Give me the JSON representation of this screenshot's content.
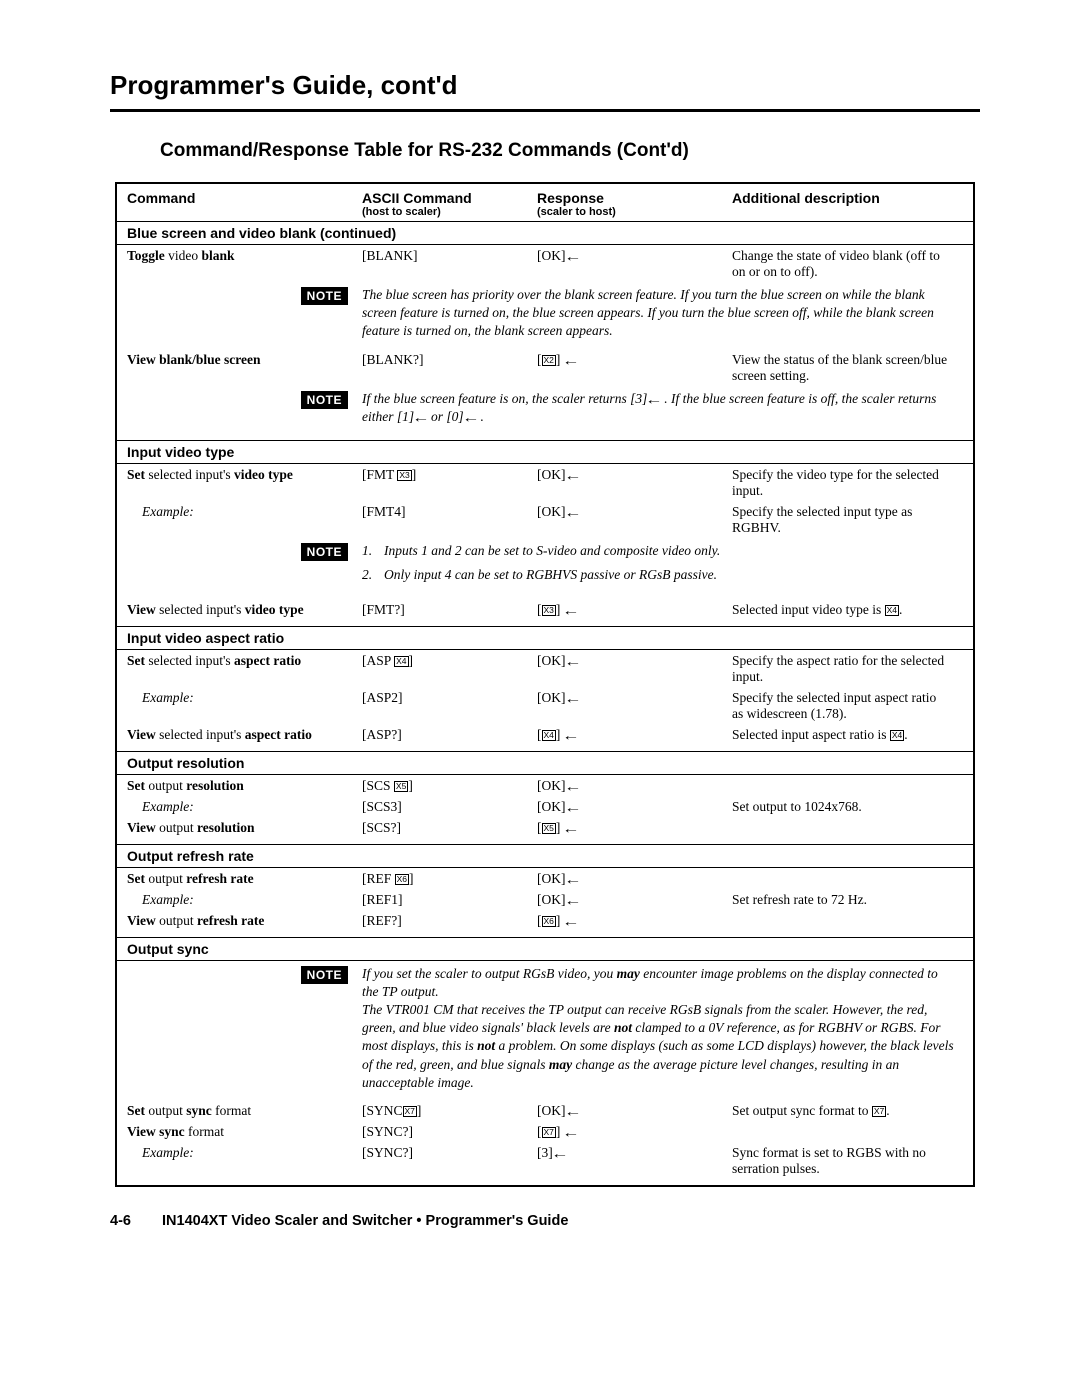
{
  "page_title": "Programmer's Guide, cont'd",
  "subtitle": "Command/Response Table for RS-232 Commands (Cont'd)",
  "columns": {
    "cmd": "Command",
    "ascii": "ASCII Command",
    "ascii_sub": "(host to scaler)",
    "resp": "Response",
    "resp_sub": "(scaler to host)",
    "desc": "Additional description"
  },
  "sections": [
    {
      "header": "Blue screen and video blank (continued)",
      "rows": [
        {
          "cmd_pre": "Toggle",
          "cmd_mid": " video ",
          "cmd_bold": "blank",
          "ascii": "[BLANK]",
          "resp": "[OK]←",
          "desc": "Change the state of video blank (off to on or on to off)."
        },
        {
          "note": "The blue screen has priority over the blank screen feature.  If you turn the blue screen on while the blank screen feature is turned on, the blue screen appears.  If you turn the blue screen off, while the blank screen feature is turned on, the blank screen appears."
        },
        {
          "cmd_pre": "View ",
          "cmd_bold": "blank/blue screen",
          "ascii": "[BLANK?]",
          "resp_box": "X2",
          "resp_suffix": "←",
          "desc": "View the status of the blank screen/blue screen setting."
        },
        {
          "note": "If the blue screen feature is on, the scaler returns [3]← .  If the blue screen feature is off, the scaler returns either [1]← or [0]← ."
        }
      ]
    },
    {
      "header": "Input video type",
      "rows": [
        {
          "cmd_pre": "Set",
          "cmd_mid": " selected input's ",
          "cmd_bold": "video type",
          "ascii_pre": "[FMT ",
          "ascii_box": "X3",
          "ascii_post": "]",
          "resp": "[OK]←",
          "desc": "Specify the video type for the selected input."
        },
        {
          "example": true,
          "cmd_italic": "Example:",
          "ascii": "[FMT4]",
          "resp": "[OK]←",
          "desc": "Specify the selected input type as RGBHV."
        },
        {
          "note_list": [
            "Inputs 1 and 2 can be set to S-video and composite video only.",
            "Only input 4 can be set to RGBHVS passive or RGsB passive."
          ]
        },
        {
          "cmd_pre": "View",
          "cmd_mid": " selected input's ",
          "cmd_bold": "video type",
          "ascii": "[FMT?]",
          "resp_box": "X3",
          "resp_suffix": "←",
          "desc_pre": "Selected input video type is ",
          "desc_box": "X4",
          "desc_post": "."
        }
      ]
    },
    {
      "header": "Input video aspect ratio",
      "rows": [
        {
          "cmd_pre": "Set",
          "cmd_mid": " selected input's ",
          "cmd_bold": "aspect ratio",
          "ascii_pre": "[ASP ",
          "ascii_box": "X4",
          "ascii_post": "]",
          "resp": "[OK]←",
          "desc": "Specify the aspect ratio for the selected input."
        },
        {
          "example": true,
          "cmd_italic": "Example:",
          "ascii": "[ASP2]",
          "resp": "[OK]←",
          "desc": "Specify the selected input aspect ratio as widescreen (1.78)."
        },
        {
          "cmd_pre": "View",
          "cmd_mid": " selected input's ",
          "cmd_bold": "aspect ratio",
          "ascii": "[ASP?]",
          "resp_box": "X4",
          "resp_suffix": "←",
          "desc_pre": "Selected input aspect ratio is ",
          "desc_box": "X4",
          "desc_post": "."
        }
      ]
    },
    {
      "header": "Output resolution",
      "rows": [
        {
          "cmd_pre": "Set",
          "cmd_mid": " output ",
          "cmd_bold": "resolution",
          "ascii_pre": "[SCS ",
          "ascii_box": "X5",
          "ascii_post": "]",
          "resp": "[OK]←",
          "desc": ""
        },
        {
          "example": true,
          "cmd_italic": "Example:",
          "ascii": "[SCS3]",
          "resp": "[OK]←",
          "desc": "Set output to 1024x768."
        },
        {
          "cmd_pre": "View",
          "cmd_mid": " output ",
          "cmd_bold": "resolution",
          "ascii": "[SCS?]",
          "resp_box": "X5",
          "resp_suffix": "←",
          "desc": ""
        }
      ]
    },
    {
      "header": "Output refresh rate",
      "rows": [
        {
          "cmd_pre": "Set",
          "cmd_mid": " output ",
          "cmd_bold": "refresh rate",
          "ascii_pre": "[REF ",
          "ascii_box": "X6",
          "ascii_post": "]",
          "resp": "[OK]←",
          "desc": ""
        },
        {
          "example": true,
          "cmd_italic": "Example:",
          "ascii": "[REF1]",
          "resp": "[OK]←",
          "desc": "Set refresh rate to 72 Hz."
        },
        {
          "cmd_pre": "View",
          "cmd_mid": " output ",
          "cmd_bold": "refresh rate",
          "ascii": "[REF?]",
          "resp_box": "X6",
          "resp_suffix": "←",
          "desc": ""
        }
      ]
    },
    {
      "header": "Output sync",
      "rows": [
        {
          "note_html": "If you set the scaler to output RGsB video, you <span class='boldital'>may</span> encounter image problems on the display connected to the TP output.<br>The VTR001 CM that receives the TP output can receive RGsB signals from the scaler.  However, the red, green, and blue video signals' black levels are <span class='boldital'>not</span> clamped to a 0V reference, as for RGBHV or RGBS.  For most displays, this is <span class='boldital'>not</span> a problem.  On some displays (such as some LCD displays) however, the black levels of the red, green, and blue signals <span class='boldital'>may</span> change as the average picture level changes, resulting in an unacceptable image."
        },
        {
          "cmd_pre": "Set",
          "cmd_mid": " output ",
          "cmd_bold": "sync",
          "cmd_post": " format",
          "ascii_pre": "[SYNC",
          "ascii_box": "X7",
          "ascii_post": "]",
          "resp": "[OK]←",
          "desc_pre": "Set output sync format to ",
          "desc_box": "X7",
          "desc_post": "."
        },
        {
          "cmd_pre": "View ",
          "cmd_bold": "sync",
          "cmd_post": " format",
          "ascii": "[SYNC?]",
          "resp_box": "X7",
          "resp_suffix": "←",
          "desc": ""
        },
        {
          "example": true,
          "cmd_italic": "Example:",
          "ascii": "[SYNC?]",
          "resp": "[3]←",
          "desc": "Sync format is set to RGBS with no serration pulses."
        }
      ]
    }
  ],
  "footer": {
    "page": "4-6",
    "text": "IN1404XT Video Scaler and Switcher • Programmer's Guide"
  },
  "note_label": "NOTE"
}
